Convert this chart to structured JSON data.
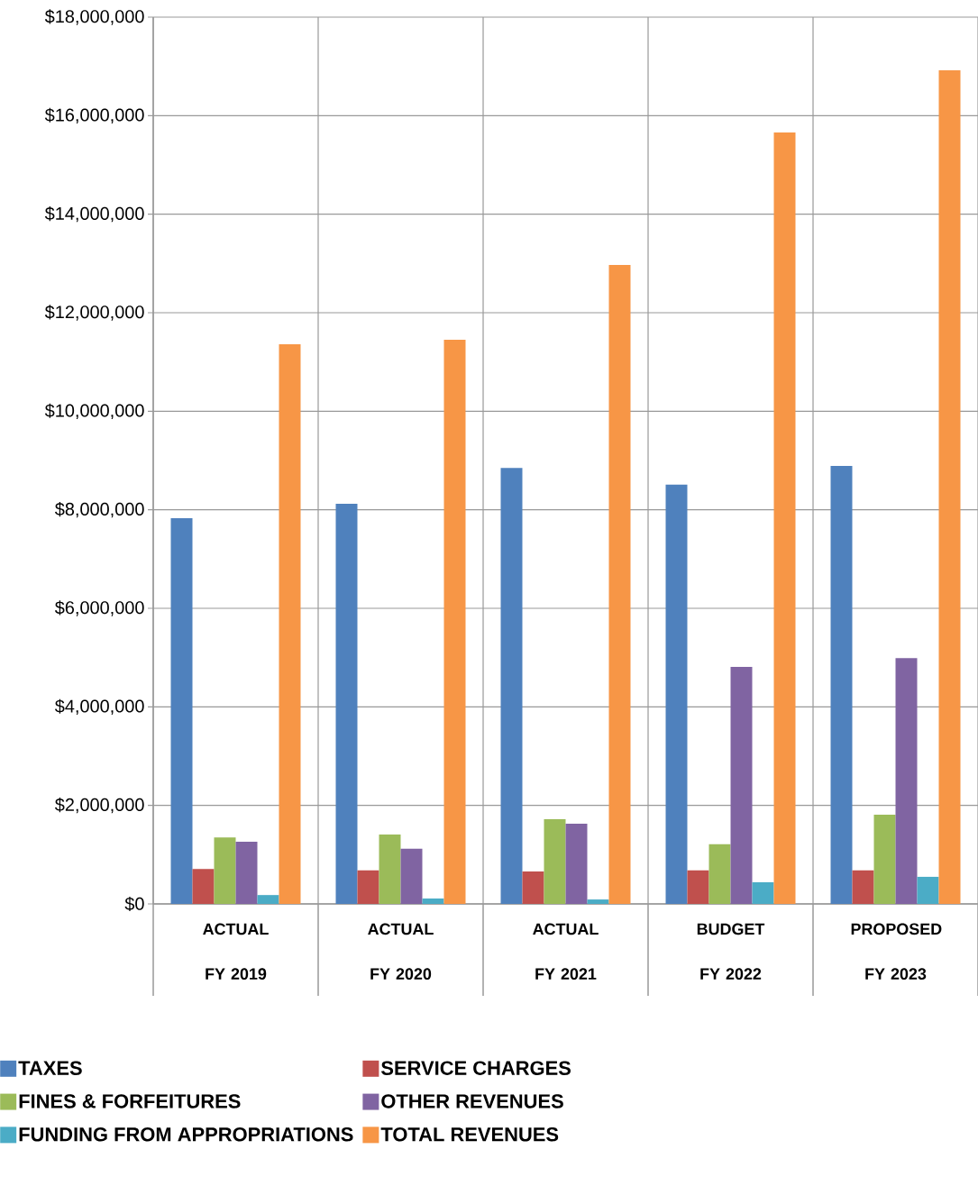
{
  "chart_data": {
    "type": "bar",
    "categories": [
      "ACTUAL FY 2019",
      "ACTUAL FY 2020",
      "ACTUAL FY 2021",
      "BUDGET FY 2022",
      "PROPOSED FY 2023"
    ],
    "series": [
      {
        "name": "TAXES",
        "color": "#4f81bd",
        "values": [
          7830000,
          8120000,
          8850000,
          8510000,
          8890000
        ]
      },
      {
        "name": "SERVICE CHARGES",
        "color": "#c0504d",
        "values": [
          710000,
          680000,
          660000,
          680000,
          680000
        ]
      },
      {
        "name": "FINES & FORFEITURES",
        "color": "#9bbb59",
        "values": [
          1350000,
          1410000,
          1720000,
          1210000,
          1810000
        ]
      },
      {
        "name": "OTHER REVENUES",
        "color": "#8064a2",
        "values": [
          1260000,
          1120000,
          1630000,
          4810000,
          4990000
        ]
      },
      {
        "name": "FUNDING FROM APPROPRIATIONS",
        "color": "#4bacc6",
        "values": [
          180000,
          110000,
          90000,
          440000,
          550000
        ]
      },
      {
        "name": "TOTAL REVENUES",
        "color": "#f79646",
        "values": [
          11360000,
          11450000,
          12970000,
          15660000,
          16920000
        ]
      }
    ],
    "ylim": [
      0,
      18000000
    ],
    "yticks": [
      {
        "value": 0,
        "label": "$0"
      },
      {
        "value": 2000000,
        "label": "$2,000,000"
      },
      {
        "value": 4000000,
        "label": "$4,000,000"
      },
      {
        "value": 6000000,
        "label": "$6,000,000"
      },
      {
        "value": 8000000,
        "label": "$8,000,000"
      },
      {
        "value": 10000000,
        "label": "$10,000,000"
      },
      {
        "value": 12000000,
        "label": "$12,000,000"
      },
      {
        "value": 14000000,
        "label": "$14,000,000"
      },
      {
        "value": 16000000,
        "label": "$16,000,000"
      },
      {
        "value": 18000000,
        "label": "$18,000,000"
      }
    ],
    "grid": true,
    "legend": "bottom"
  }
}
